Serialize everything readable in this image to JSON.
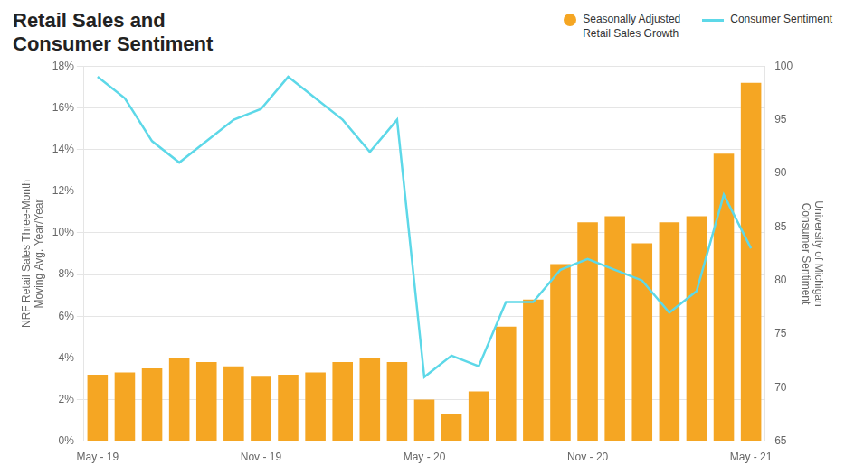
{
  "chart_data": {
    "type": "bar",
    "title": "Retail Sales and\nConsumer Sentiment",
    "categories": [
      "May - 19",
      null,
      null,
      null,
      null,
      null,
      "Nov - 19",
      null,
      null,
      null,
      null,
      null,
      "May - 20",
      null,
      null,
      null,
      null,
      null,
      "Nov - 20",
      null,
      null,
      null,
      null,
      null,
      "May - 21"
    ],
    "series": [
      {
        "name": "Seasonally Adjusted\nRetail Sales Growth",
        "type": "bar",
        "color": "#F5A623",
        "values": [
          3.2,
          3.3,
          3.5,
          4.0,
          3.8,
          3.6,
          3.1,
          3.2,
          3.3,
          3.8,
          4.0,
          3.8,
          2.0,
          1.3,
          2.4,
          5.5,
          6.8,
          8.5,
          10.5,
          10.8,
          9.5,
          10.5,
          10.8,
          13.8,
          17.2
        ]
      },
      {
        "name": "Consumer Sentiment",
        "type": "line",
        "axis": "y2",
        "color": "#5DD8E8",
        "values": [
          99,
          97,
          93,
          91,
          93,
          95,
          96,
          99,
          97,
          95,
          92,
          95,
          71,
          73,
          72,
          78,
          78,
          81,
          82,
          81,
          80,
          77,
          79,
          88,
          83
        ]
      }
    ],
    "ylabel": "NRF Retail Sales Three-Month\nMoving Avg. Year/Year",
    "y2label": "University of Michigan\nConsumer Sentiment",
    "ylim": [
      0,
      18
    ],
    "yticks": [
      {
        "value": 0,
        "label": "0%"
      },
      {
        "value": 2,
        "label": "2%"
      },
      {
        "value": 4,
        "label": "4%"
      },
      {
        "value": 6,
        "label": "6%"
      },
      {
        "value": 8,
        "label": "8%"
      },
      {
        "value": 10,
        "label": "10%"
      },
      {
        "value": 12,
        "label": "12%"
      },
      {
        "value": 14,
        "label": "14%"
      },
      {
        "value": 16,
        "label": "16%"
      },
      {
        "value": 18,
        "label": "18%"
      }
    ],
    "y2lim": [
      65,
      100
    ],
    "y2ticks": [
      65,
      70,
      75,
      80,
      85,
      90,
      95,
      100
    ],
    "grid": true,
    "legend": "upper right"
  }
}
